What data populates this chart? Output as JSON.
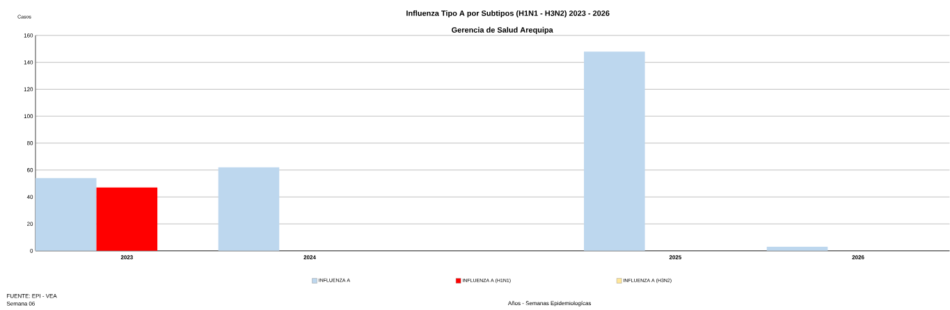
{
  "chart_data": {
    "type": "bar",
    "title": "Influenza Tipo A por Subtipos (H1N1 - H3N2) 2023 - 2026",
    "subtitle": "Gerencia de Salud Arequipa",
    "ylabel": "Casos",
    "annotations": [
      "FUENTE: EPI - VEA",
      "Semana 06",
      "Años - Semanas Epidemiologícas"
    ],
    "categories": [
      "2023",
      "2024",
      null,
      "2025",
      "2026"
    ],
    "series": [
      {
        "name": "INFLUENZA A",
        "color": "#bdd7ee",
        "values": [
          54,
          62,
          null,
          148,
          3
        ]
      },
      {
        "name": "INFLUENZA A (H1N1)",
        "color": "#ff0000",
        "values": [
          47,
          0,
          null,
          0,
          0
        ]
      },
      {
        "name": "INFLUENZA A (H3N2)",
        "color": "#ffe699",
        "values": [
          0,
          0,
          null,
          0,
          0
        ]
      }
    ],
    "ylim": [
      0,
      160
    ],
    "yticks": [
      0,
      20,
      40,
      60,
      80,
      100,
      120,
      140,
      160
    ],
    "grid": "y",
    "legend": "bottom"
  }
}
